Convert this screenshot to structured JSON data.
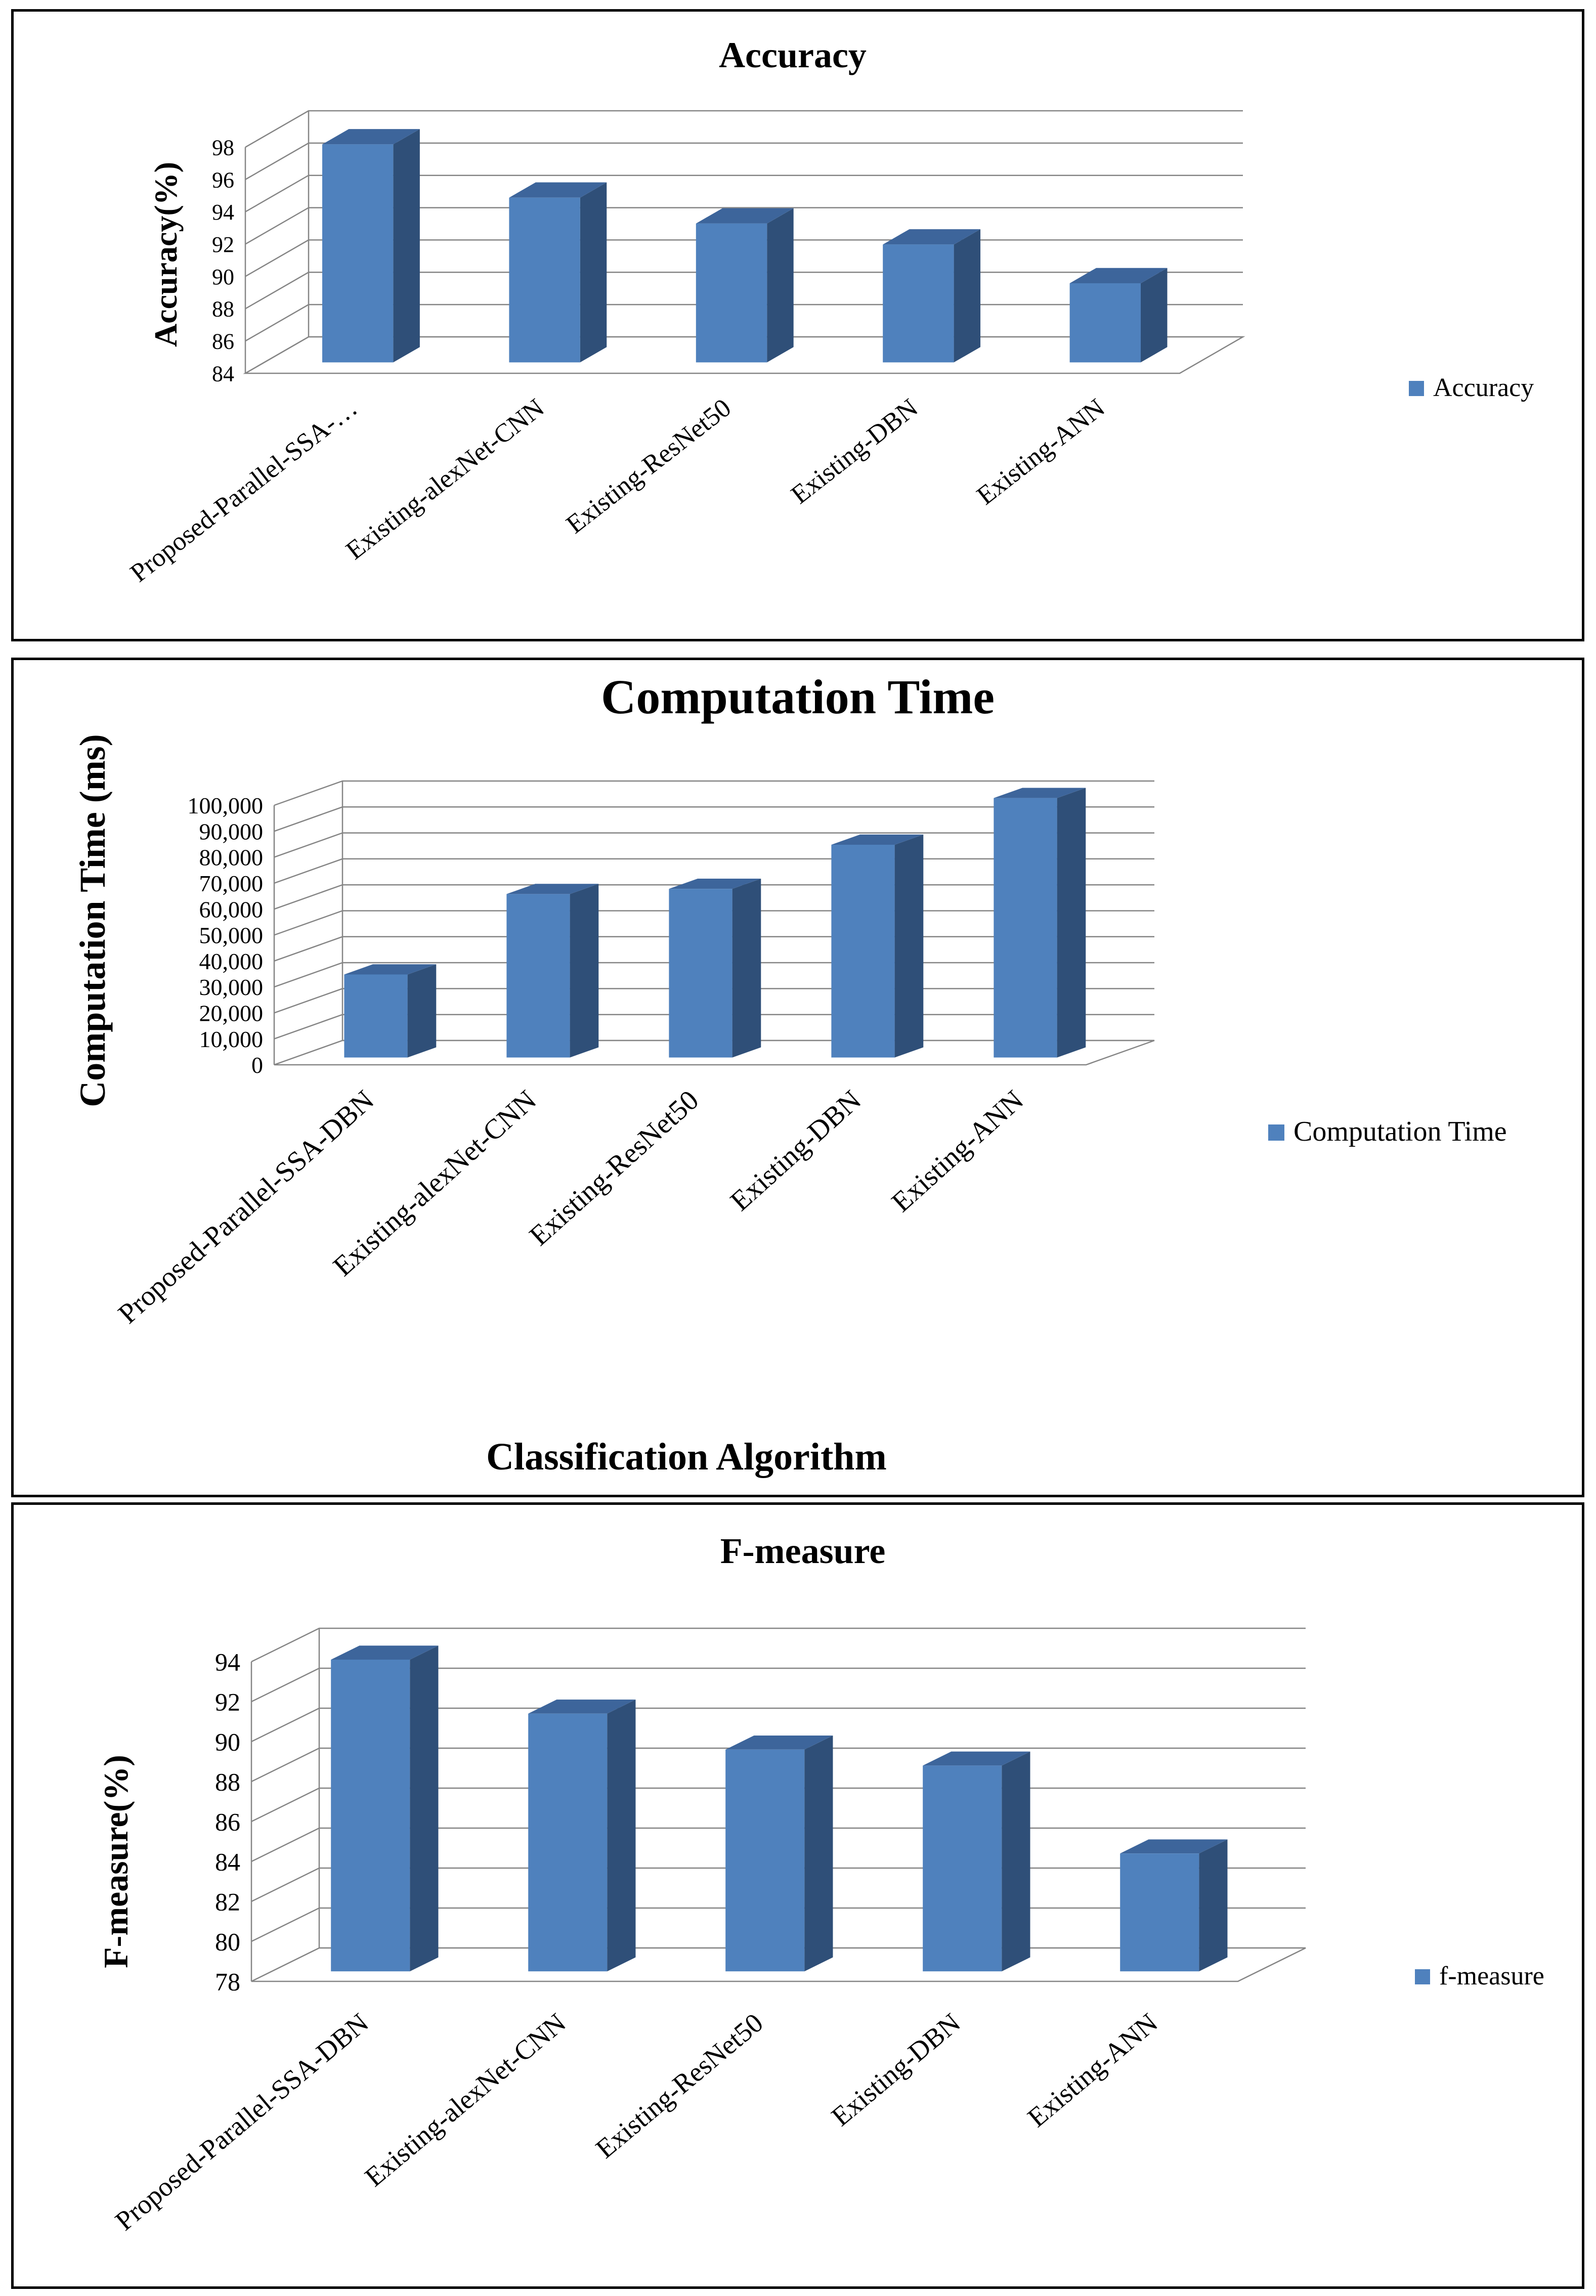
{
  "colors": {
    "bar_front": "#4f81bd",
    "bar_side": "#2f4f78",
    "bar_top": "#3d659b",
    "grid": "#858585"
  },
  "chart_data": [
    {
      "type": "bar",
      "title": "Accuracy",
      "xlabel": "",
      "ylabel": "Accuracy(%)",
      "ylim": [
        84,
        98
      ],
      "yticks": [
        "84",
        "86",
        "88",
        "90",
        "92",
        "94",
        "96",
        "98"
      ],
      "categories": [
        "Proposed-Parallel-SSA-…",
        "Existing-alexNet-CNN",
        "Existing-ResNet50",
        "Existing-DBN",
        "Existing-ANN"
      ],
      "series": [
        {
          "name": "Accuracy",
          "values": [
            97.5,
            94.2,
            92.6,
            91.3,
            88.9
          ]
        }
      ],
      "legend": "right"
    },
    {
      "type": "bar",
      "title": "Computation Time",
      "xlabel": "Classification Algorithm",
      "ylabel": "Computation Time (ms)",
      "ylim": [
        0,
        100000
      ],
      "yticks": [
        "0",
        "10,000",
        "20,000",
        "30,000",
        "40,000",
        "50,000",
        "60,000",
        "70,000",
        "80,000",
        "90,000",
        "100,000"
      ],
      "categories": [
        "Proposed-Parallel-SSA-DBN",
        "Existing-alexNet-CNN",
        "Existing-ResNet50",
        "Existing-DBN",
        "Existing-ANN"
      ],
      "series": [
        {
          "name": "Computation Time",
          "values": [
            32000,
            63000,
            65000,
            82000,
            100000
          ]
        }
      ],
      "legend": "right"
    },
    {
      "type": "bar",
      "title": "F-measure",
      "xlabel": "",
      "ylabel": "F-measure(%)",
      "ylim": [
        78,
        94
      ],
      "yticks": [
        "78",
        "80",
        "82",
        "84",
        "86",
        "88",
        "90",
        "92",
        "94"
      ],
      "categories": [
        "Proposed-Parallel-SSA-DBN",
        "Existing-alexNet-CNN",
        "Existing-ResNet50",
        "Existing-DBN",
        "Existing-ANN"
      ],
      "series": [
        {
          "name": "f-measure",
          "values": [
            93.6,
            90.9,
            89.1,
            88.3,
            83.9
          ]
        }
      ],
      "legend": "right"
    }
  ]
}
